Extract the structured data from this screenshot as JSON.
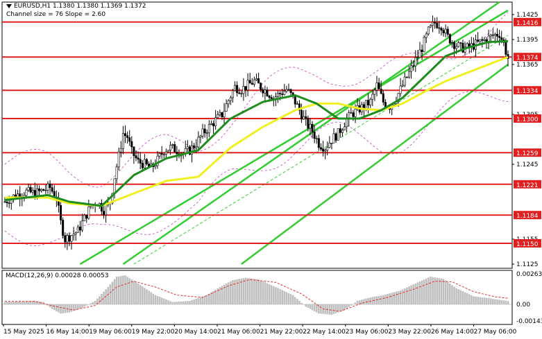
{
  "header": {
    "symbol_line": "EURUSD,H1  1.1380 1.1380 1.1369 1.1372",
    "channel_line": "Channel size = 76 Slope = 2.60"
  },
  "macd_label": "MACD(12,26,9) 0.00028 0.00053",
  "price_axis_labels": [
    "1.1425",
    "1.1395",
    "1.1365",
    "1.1305",
    "1.1245",
    "1.1155",
    "1.1125"
  ],
  "level_lines": [
    {
      "value": "1.1416",
      "price": 1.1416
    },
    {
      "value": "1.1374",
      "price": 1.1374
    },
    {
      "value": "1.1334",
      "price": 1.1334
    },
    {
      "value": "1.1300",
      "price": 1.13
    },
    {
      "value": "1.1259",
      "price": 1.1259
    },
    {
      "value": "1.1221",
      "price": 1.1221
    },
    {
      "value": "1.1184",
      "price": 1.1184
    },
    {
      "value": "1.1150",
      "price": 1.115
    }
  ],
  "macd_axis_labels": [
    "0.00263",
    "0.00",
    "-0.00143"
  ],
  "time_labels": [
    "15 May 2025",
    "16 May 14:00",
    "19 May 06:00",
    "19 May 22:00",
    "20 May 14:00",
    "21 May 06:00",
    "21 May 22:00",
    "22 May 14:00",
    "23 May 06:00",
    "23 May 22:00",
    "26 May 14:00",
    "27 May 06:00"
  ],
  "colors": {
    "level_line": "#e02020",
    "level_tag_bg": "#e02020",
    "candle": "#000000",
    "ma_fast": "#1e8c1e",
    "ma_slow": "#f0f020",
    "channel": "#33cc33",
    "bollinger": "#c040c0",
    "macd_hist": "#c0c0c0",
    "macd_signal": "#e03030"
  },
  "chart_data": {
    "type": "candlestick",
    "symbol": "EURUSD",
    "timeframe": "H1",
    "ohlc_last": {
      "open": 1.138,
      "high": 1.138,
      "low": 1.1369,
      "close": 1.1372
    },
    "y_range": [
      1.112,
      1.144
    ],
    "price_path": [
      [
        0,
        1.12
      ],
      [
        5,
        1.1208
      ],
      [
        10,
        1.1212
      ],
      [
        14,
        1.121
      ],
      [
        18,
        1.1214
      ],
      [
        21,
        1.1217
      ],
      [
        24,
        1.1205
      ],
      [
        26,
        1.1175
      ],
      [
        28,
        1.1155
      ],
      [
        31,
        1.116
      ],
      [
        34,
        1.1165
      ],
      [
        37,
        1.118
      ],
      [
        40,
        1.1195
      ],
      [
        43,
        1.12
      ],
      [
        46,
        1.119
      ],
      [
        49,
        1.12
      ],
      [
        51,
        1.123
      ],
      [
        53,
        1.1255
      ],
      [
        55,
        1.1282
      ],
      [
        57,
        1.1278
      ],
      [
        59,
        1.126
      ],
      [
        62,
        1.1248
      ],
      [
        65,
        1.1245
      ],
      [
        68,
        1.124
      ],
      [
        71,
        1.125
      ],
      [
        74,
        1.1262
      ],
      [
        77,
        1.1265
      ],
      [
        80,
        1.1262
      ],
      [
        83,
        1.1258
      ],
      [
        86,
        1.1262
      ],
      [
        89,
        1.127
      ],
      [
        92,
        1.1282
      ],
      [
        95,
        1.129
      ],
      [
        98,
        1.1298
      ],
      [
        101,
        1.1305
      ],
      [
        104,
        1.1322
      ],
      [
        107,
        1.1338
      ],
      [
        110,
        1.1335
      ],
      [
        113,
        1.134
      ],
      [
        116,
        1.1345
      ],
      [
        119,
        1.1338
      ],
      [
        122,
        1.1332
      ],
      [
        125,
        1.1325
      ],
      [
        128,
        1.133
      ],
      [
        131,
        1.1335
      ],
      [
        134,
        1.1325
      ],
      [
        137,
        1.131
      ],
      [
        140,
        1.1295
      ],
      [
        143,
        1.1285
      ],
      [
        146,
        1.127
      ],
      [
        149,
        1.1265
      ],
      [
        152,
        1.1275
      ],
      [
        155,
        1.1282
      ],
      [
        158,
        1.1295
      ],
      [
        161,
        1.1305
      ],
      [
        164,
        1.131
      ],
      [
        167,
        1.1315
      ],
      [
        170,
        1.132
      ],
      [
        173,
        1.134
      ],
      [
        176,
        1.132
      ],
      [
        179,
        1.1315
      ],
      [
        182,
        1.1325
      ],
      [
        185,
        1.134
      ],
      [
        188,
        1.1355
      ],
      [
        191,
        1.137
      ],
      [
        194,
        1.1385
      ],
      [
        197,
        1.1405
      ],
      [
        200,
        1.1415
      ],
      [
        203,
        1.1412
      ],
      [
        206,
        1.1398
      ],
      [
        209,
        1.139
      ],
      [
        212,
        1.1385
      ],
      [
        215,
        1.1385
      ],
      [
        218,
        1.1388
      ],
      [
        221,
        1.1392
      ],
      [
        224,
        1.1395
      ],
      [
        227,
        1.14
      ],
      [
        230,
        1.1402
      ],
      [
        232,
        1.139
      ],
      [
        234,
        1.1372
      ]
    ],
    "ma_fast_path": [
      [
        0,
        1.1202
      ],
      [
        20,
        1.1208
      ],
      [
        30,
        1.12
      ],
      [
        45,
        1.1195
      ],
      [
        60,
        1.1232
      ],
      [
        75,
        1.1252
      ],
      [
        90,
        1.1262
      ],
      [
        105,
        1.13
      ],
      [
        120,
        1.132
      ],
      [
        135,
        1.1328
      ],
      [
        145,
        1.1318
      ],
      [
        155,
        1.13
      ],
      [
        165,
        1.13
      ],
      [
        175,
        1.131
      ],
      [
        185,
        1.1325
      ],
      [
        195,
        1.135
      ],
      [
        205,
        1.1375
      ],
      [
        215,
        1.1385
      ],
      [
        225,
        1.1392
      ],
      [
        234,
        1.1393
      ]
    ],
    "ma_slow_path": [
      [
        0,
        1.1205
      ],
      [
        20,
        1.1205
      ],
      [
        30,
        1.1198
      ],
      [
        45,
        1.1195
      ],
      [
        60,
        1.121
      ],
      [
        75,
        1.1225
      ],
      [
        90,
        1.123
      ],
      [
        105,
        1.1265
      ],
      [
        120,
        1.129
      ],
      [
        135,
        1.131
      ],
      [
        145,
        1.1318
      ],
      [
        155,
        1.1318
      ],
      [
        165,
        1.1312
      ],
      [
        175,
        1.131
      ],
      [
        185,
        1.1318
      ],
      [
        195,
        1.1332
      ],
      [
        205,
        1.1345
      ],
      [
        215,
        1.1355
      ],
      [
        225,
        1.1365
      ],
      [
        234,
        1.1374
      ]
    ],
    "macd": {
      "y_range": [
        -0.0015,
        0.0027
      ],
      "hist_path": [
        [
          0,
          0.0002
        ],
        [
          8,
          0.00025
        ],
        [
          14,
          0.0003
        ],
        [
          18,
          0.0002
        ],
        [
          22,
          -0.0004
        ],
        [
          26,
          -0.0008
        ],
        [
          30,
          -0.0007
        ],
        [
          36,
          -0.0003
        ],
        [
          42,
          0.0003
        ],
        [
          48,
          0.0015
        ],
        [
          52,
          0.0024
        ],
        [
          56,
          0.0025
        ],
        [
          62,
          0.0018
        ],
        [
          70,
          0.0008
        ],
        [
          78,
          0.0002
        ],
        [
          86,
          0.0003
        ],
        [
          94,
          0.0008
        ],
        [
          100,
          0.0015
        ],
        [
          106,
          0.0021
        ],
        [
          112,
          0.0023
        ],
        [
          118,
          0.00215
        ],
        [
          126,
          0.0015
        ],
        [
          134,
          0.0008
        ],
        [
          140,
          -0.0002
        ],
        [
          146,
          -0.0008
        ],
        [
          152,
          -0.0009
        ],
        [
          158,
          -0.0005
        ],
        [
          164,
          0.0003
        ],
        [
          170,
          0.0006
        ],
        [
          176,
          0.0008
        ],
        [
          184,
          0.0012
        ],
        [
          192,
          0.0019
        ],
        [
          198,
          0.0024
        ],
        [
          204,
          0.0022
        ],
        [
          210,
          0.0014
        ],
        [
          218,
          0.0007
        ],
        [
          226,
          0.0005
        ],
        [
          234,
          0.00028
        ]
      ],
      "signal_path": [
        [
          0,
          0.00025
        ],
        [
          14,
          0.00025
        ],
        [
          24,
          -0.0002
        ],
        [
          32,
          -0.0005
        ],
        [
          42,
          -0.0001
        ],
        [
          52,
          0.0015
        ],
        [
          60,
          0.002
        ],
        [
          70,
          0.0015
        ],
        [
          80,
          0.0008
        ],
        [
          92,
          0.0006
        ],
        [
          104,
          0.0016
        ],
        [
          114,
          0.00215
        ],
        [
          126,
          0.0019
        ],
        [
          138,
          0.0009
        ],
        [
          148,
          -0.0004
        ],
        [
          156,
          -0.0006
        ],
        [
          166,
          0.0001
        ],
        [
          178,
          0.0006
        ],
        [
          190,
          0.0013
        ],
        [
          200,
          0.002
        ],
        [
          208,
          0.00195
        ],
        [
          218,
          0.0011
        ],
        [
          228,
          0.00065
        ],
        [
          234,
          0.00053
        ]
      ]
    }
  }
}
